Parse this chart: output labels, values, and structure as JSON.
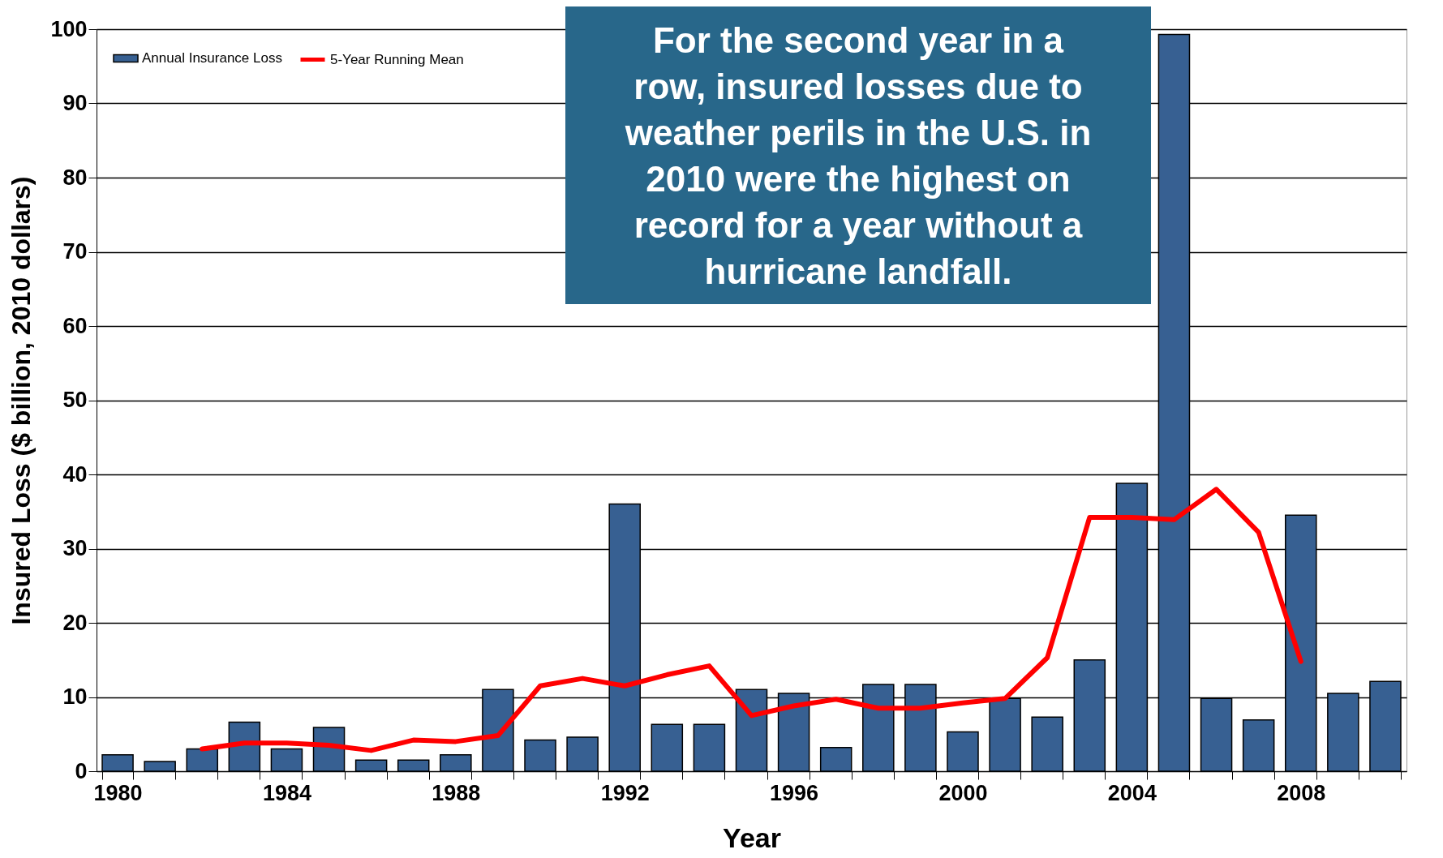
{
  "chart_data": {
    "type": "bar",
    "xlabel": "Year",
    "ylabel": "Insured Loss ($ billion, 2010 dollars)",
    "annotations": [
      "For the second year in a row, insured losses due to weather perils in the U.S. in 2010 were the highest on record for a year without a hurricane landfall."
    ],
    "categories": [
      "1980",
      null,
      null,
      null,
      "1984",
      null,
      null,
      null,
      "1988",
      null,
      null,
      null,
      "1992",
      null,
      null,
      null,
      "1996",
      null,
      null,
      null,
      "2000",
      null,
      null,
      null,
      "2004",
      null,
      null,
      null,
      "2008",
      null,
      null
    ],
    "series": [
      {
        "name": "Annual Insurance Loss",
        "color": "#376092",
        "values": [
          2.2,
          1.3,
          3.0,
          6.6,
          3.0,
          5.9,
          1.5,
          1.5,
          2.2,
          11.0,
          4.2,
          4.6,
          36.0,
          6.3,
          6.3,
          11.0,
          10.5,
          3.2,
          11.7,
          11.7,
          5.3,
          9.8,
          7.3,
          15.0,
          38.8,
          99.3,
          9.8,
          6.9,
          34.5,
          10.5,
          12.1
        ]
      },
      {
        "name": "5-Year Running Mean",
        "type": "line",
        "color": "#ff0000",
        "values": [
          null,
          null,
          3.0,
          3.8,
          3.8,
          3.5,
          2.8,
          4.2,
          4.0,
          4.8,
          11.5,
          12.5,
          11.5,
          13.0,
          14.2,
          7.5,
          8.8,
          9.7,
          8.5,
          8.5,
          9.2,
          9.8,
          15.3,
          34.2,
          34.2,
          33.9,
          38.0,
          32.2,
          14.8,
          null,
          null
        ]
      }
    ],
    "ylim": [
      0,
      100
    ],
    "yticks": [
      0,
      10,
      20,
      30,
      40,
      50,
      60,
      70,
      80,
      90,
      100
    ],
    "grid": "y",
    "legend": "top left"
  }
}
